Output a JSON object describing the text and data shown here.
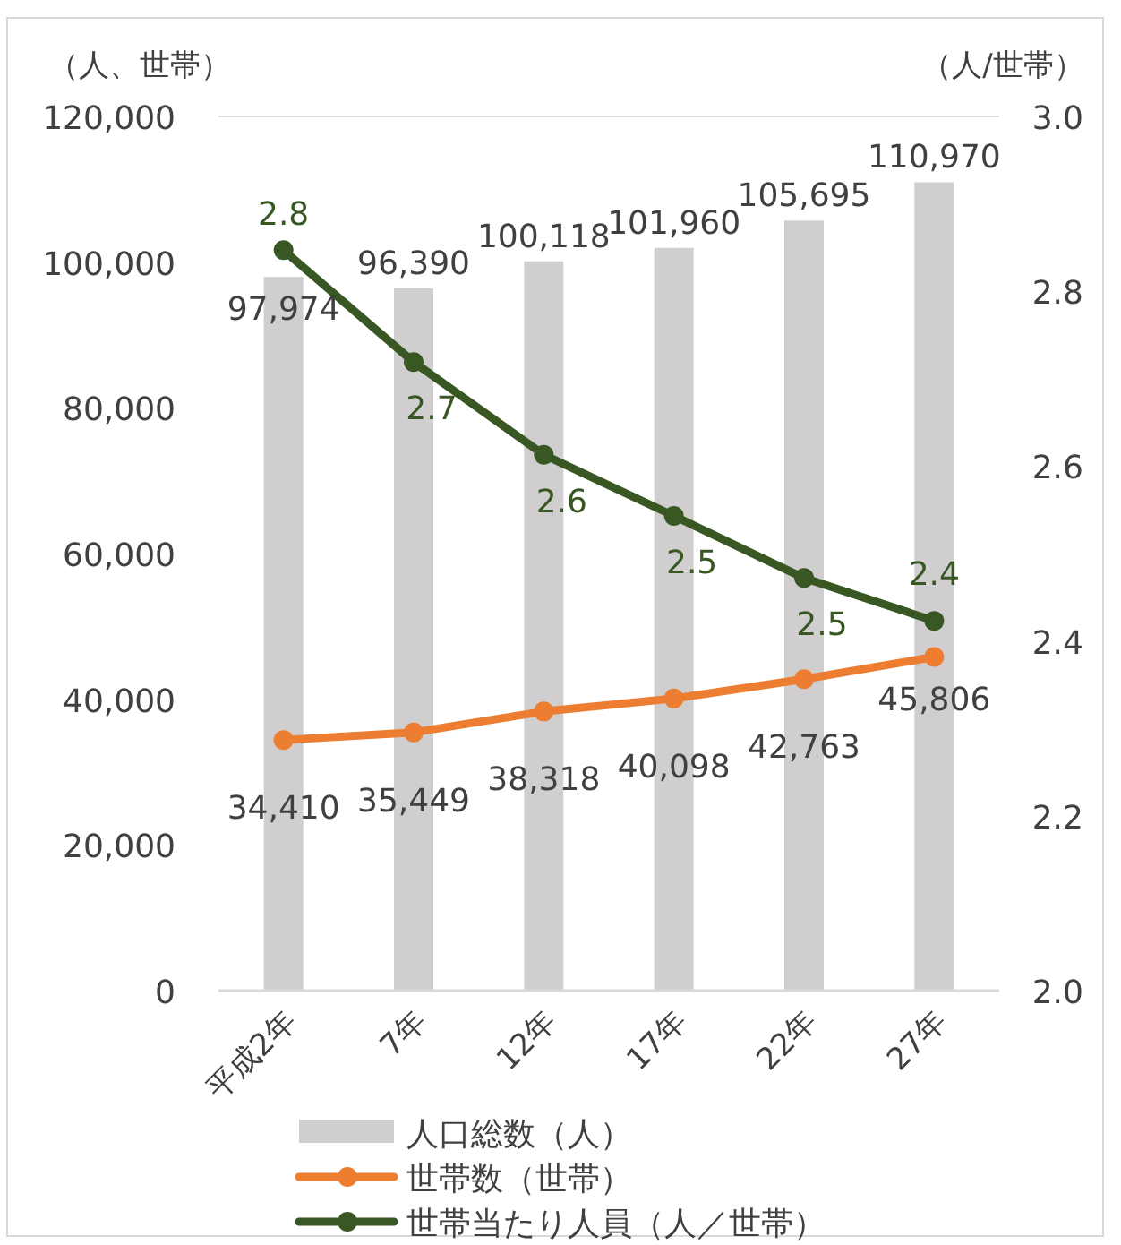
{
  "chart_data": {
    "type": "bar",
    "ylabel": "（人、世帯）",
    "y2label": "（人/世帯）",
    "categories": [
      "平成2年",
      "7年",
      "12年",
      "17年",
      "22年",
      "27年"
    ],
    "series": [
      {
        "name": "人口総数（人）",
        "color": "#d0cece",
        "values": [
          97974,
          96390,
          100118,
          101960,
          105695,
          110970
        ],
        "value_labels": [
          "97,974",
          "96,390",
          "100,118",
          "101,960",
          "105,695",
          "110,970"
        ]
      },
      {
        "name": "世帯数（世帯）",
        "type": "line",
        "color": "#ed7d31",
        "values": [
          34410,
          35449,
          38318,
          40098,
          42763,
          45806
        ],
        "value_labels": [
          "34,410",
          "35,449",
          "38,318",
          "40,098",
          "42,763",
          "45,806"
        ]
      },
      {
        "name": "世帯当たり人員（人／世帯）",
        "type": "line",
        "axis": "y2",
        "color": "#385723",
        "values": [
          2.847,
          2.719,
          2.613,
          2.543,
          2.472,
          2.423
        ],
        "value_labels": [
          "2.8",
          "2.7",
          "2.6",
          "2.5",
          "2.5",
          "2.4"
        ]
      }
    ],
    "ylim": [
      0,
      120000
    ],
    "yticks": [
      {
        "value": 0,
        "label": "0"
      },
      {
        "value": 20000,
        "label": "20,000"
      },
      {
        "value": 40000,
        "label": "40,000"
      },
      {
        "value": 60000,
        "label": "60,000"
      },
      {
        "value": 80000,
        "label": "80,000"
      },
      {
        "value": 100000,
        "label": "100,000"
      },
      {
        "value": 120000,
        "label": "120,000"
      }
    ],
    "y2lim": [
      2.0,
      3.0
    ],
    "y2ticks": [
      {
        "value": 2.0,
        "label": "2.0"
      },
      {
        "value": 2.2,
        "label": "2.2"
      },
      {
        "value": 2.4,
        "label": "2.4"
      },
      {
        "value": 2.6,
        "label": "2.6"
      },
      {
        "value": 2.8,
        "label": "2.8"
      },
      {
        "value": 3.0,
        "label": "3.0"
      }
    ],
    "marker": "circle",
    "legend": "bottom",
    "grid": false
  }
}
